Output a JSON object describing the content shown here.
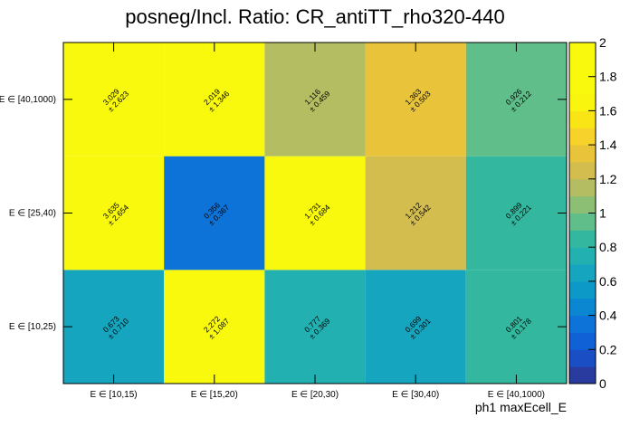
{
  "chart_data": {
    "type": "heatmap",
    "title": "posneg/Incl. Ratio: CR_antiTT_rho320-440",
    "xlabel": "ph1 maxEcell_E",
    "ylabel": "",
    "x_categories": [
      "E ∈ [10,15)",
      "E ∈ [15,20)",
      "E ∈ [20,30)",
      "E ∈ [30,40)",
      "E ∈ [40,1000)"
    ],
    "y_categories": [
      "E ∈ [10,25)",
      "E ∈ [25,40)",
      "E ∈ [40,1000)"
    ],
    "values": [
      [
        0.673,
        2.272,
        0.777,
        0.699,
        0.801
      ],
      [
        3.635,
        0.356,
        1.731,
        1.212,
        0.899
      ],
      [
        3.029,
        2.019,
        1.116,
        1.363,
        0.926
      ]
    ],
    "errors": [
      [
        0.71,
        1.087,
        0.369,
        0.301,
        0.178
      ],
      [
        2.654,
        0.367,
        0.684,
        0.542,
        0.221
      ],
      [
        2.623,
        1.346,
        0.459,
        0.503,
        0.212
      ]
    ],
    "value_labels": [
      [
        "0.673",
        "2.272",
        "0.777",
        "0.699",
        "0.801"
      ],
      [
        "3.635",
        "0.356",
        "1.731",
        "1.212",
        "0.899"
      ],
      [
        "3.029",
        "2.019",
        "1.116",
        "1.363",
        "0.926"
      ]
    ],
    "error_labels": [
      [
        "± 0.710",
        "± 1.087",
        "± 0.369",
        "± 0.301",
        "± 0.178"
      ],
      [
        "± 2.654",
        "± 0.367",
        "± 0.684",
        "± 0.542",
        "± 0.221"
      ],
      [
        "± 2.623",
        "± 1.346",
        "± 0.459",
        "± 0.503",
        "± 0.212"
      ]
    ],
    "zlim": [
      0,
      2
    ],
    "z_ticks": [
      "0",
      "0.2",
      "0.4",
      "0.6",
      "0.8",
      "1",
      "1.2",
      "1.4",
      "1.6",
      "1.8",
      "2"
    ],
    "z_tick_values": [
      0,
      0.2,
      0.4,
      0.6,
      0.8,
      1.0,
      1.2,
      1.4,
      1.6,
      1.8,
      2.0
    ],
    "palette": [
      "#2a3ba0",
      "#1a4ec4",
      "#1161d6",
      "#0e73d8",
      "#0b86d0",
      "#0d99c8",
      "#15a5be",
      "#22b0b0",
      "#33b89f",
      "#5fbe8a",
      "#8cbf74",
      "#b4bd62",
      "#d4bd4f",
      "#e9c43b",
      "#f6d22a",
      "#f9e416",
      "#f9f50f",
      "#f9f90e",
      "#f9f90e",
      "#f9f90e"
    ]
  }
}
